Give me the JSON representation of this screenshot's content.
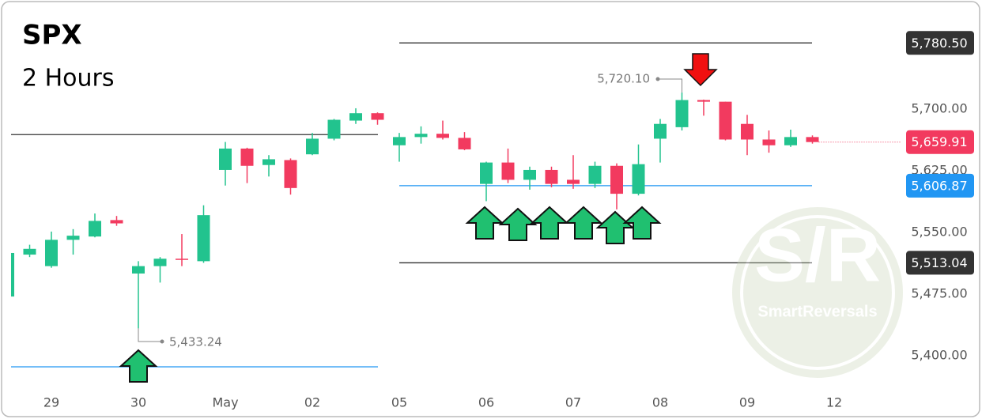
{
  "chart_data": {
    "type": "candlestick",
    "title": "SPX",
    "subtitle": "2 Hours",
    "categories": [
      null,
      null,
      "29",
      null,
      null,
      null,
      "30",
      null,
      null,
      null,
      "May",
      null,
      null,
      null,
      "02",
      null,
      null,
      null,
      "05",
      null,
      null,
      null,
      "06",
      null,
      null,
      null,
      "07",
      null,
      null,
      null,
      "08",
      null,
      null,
      null,
      "09",
      null,
      null,
      null,
      "12"
    ],
    "open": [
      5472,
      5523,
      5509,
      5541,
      5545,
      5565,
      5500,
      5509,
      5518,
      5515,
      5626,
      5652,
      5632,
      5638,
      5645,
      5664,
      5686,
      5695,
      5656,
      5666,
      5670,
      5665,
      5609,
      5635,
      5614,
      5626,
      5614,
      5609,
      5631,
      5597,
      5664,
      5678,
      5711,
      5709,
      5682,
      5663,
      5656,
      5666,
      null
    ],
    "high": [
      5527,
      5535,
      5551,
      5554,
      5573,
      5570,
      5515,
      5520,
      5548,
      5583,
      5660,
      5653,
      5644,
      5640,
      5671,
      5688,
      5701,
      5696,
      5671,
      5679,
      5686,
      5672,
      5636,
      5652,
      5630,
      5630,
      5644,
      5636,
      5634,
      5657,
      5688,
      5720.1,
      5711.5,
      5709,
      5693,
      5674,
      5675,
      5668,
      null
    ],
    "low": [
      5470,
      5520,
      5507,
      5523,
      5544,
      5558,
      5433.24,
      5489,
      5509,
      5513,
      5607,
      5610,
      5618,
      5596,
      5644,
      5662,
      5682,
      5681,
      5636,
      5658,
      5663,
      5650,
      5588,
      5610,
      5602,
      5605,
      5603,
      5604,
      5578,
      5595,
      5635,
      5674,
      5692,
      5662,
      5644,
      5647,
      5654,
      5658,
      null
    ],
    "close": [
      5525,
      5530,
      5541,
      5546,
      5564,
      5561,
      5509,
      5518,
      5517,
      5571,
      5652,
      5631,
      5639,
      5604,
      5664,
      5687,
      5695,
      5687,
      5666,
      5670,
      5665,
      5651,
      5635,
      5614,
      5626,
      5609,
      5609,
      5631,
      5597,
      5633,
      5682,
      5711,
      5709,
      5663,
      5663,
      5656,
      5666,
      5659.91,
      null
    ],
    "up_color": "#22c38e",
    "down_color": "#f23a5f",
    "ylim": [
      5361.5,
      5827.9
    ],
    "yticks": [
      {
        "value": 5400,
        "label": "5,400.00"
      },
      {
        "value": 5475,
        "label": "5,475.00"
      },
      {
        "value": 5550,
        "label": "5,550.00"
      },
      {
        "value": 5625,
        "label": "5,625.00"
      },
      {
        "value": 5700,
        "label": "5,700.00"
      }
    ],
    "levels": [
      {
        "value": 5780.5,
        "label": "5,780.50",
        "color": "#333333"
      },
      {
        "value": 5606.87,
        "label": "5,606.87",
        "color": "#2196f3"
      },
      {
        "value": 5513.04,
        "label": "5,513.04",
        "color": "#333333"
      },
      {
        "value": 5669,
        "color": "#333333"
      },
      {
        "value": 5386.5,
        "color": "#2196f3"
      }
    ],
    "last_price": {
      "value": 5659.91,
      "label": "5,659.91",
      "color": "#f23a5f"
    },
    "annotations": [
      {
        "value": 5720.1,
        "label": "5,720.10"
      },
      {
        "value": 5433.24,
        "label": "5,433.24"
      }
    ],
    "watermark": {
      "logo": "S/R",
      "text": "SmartReversals"
    }
  }
}
